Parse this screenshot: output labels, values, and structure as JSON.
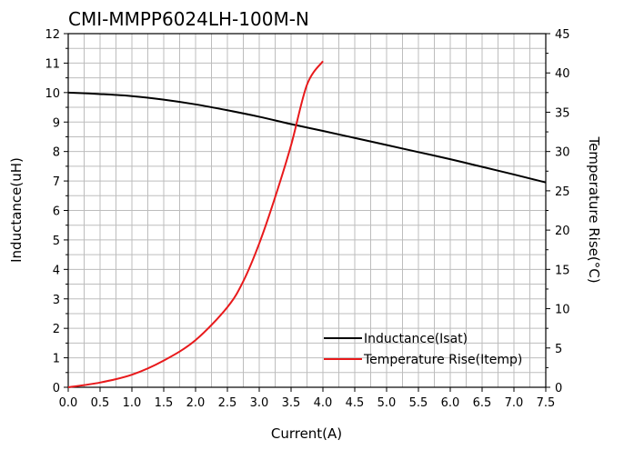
{
  "chart_data": {
    "type": "line",
    "title": "CMI-MMPP6024LH-100M-N",
    "xlabel": "Current(A)",
    "ylabel": "Inductance(uH)",
    "y2label": "Temperature Rise(°C)",
    "xlim": [
      0,
      7.5
    ],
    "ylim": [
      0,
      12
    ],
    "y2lim": [
      0,
      45
    ],
    "x_ticks": [
      "0.0",
      "0.5",
      "1.0",
      "1.5",
      "2.0",
      "2.5",
      "3.0",
      "3.5",
      "4.0",
      "4.5",
      "5.0",
      "5.5",
      "6.0",
      "6.5",
      "7.0",
      "7.5"
    ],
    "y_ticks": [
      "0",
      "1",
      "2",
      "3",
      "4",
      "5",
      "6",
      "7",
      "8",
      "9",
      "10",
      "11",
      "12"
    ],
    "y2_ticks": [
      "0",
      "5",
      "10",
      "15",
      "20",
      "25",
      "30",
      "35",
      "40",
      "45"
    ],
    "grid": true,
    "legend_position": "bottom-right",
    "series": [
      {
        "name": "Inductance(Isat)",
        "axis": "left",
        "color": "#000000",
        "x": [
          0,
          0.5,
          1.0,
          1.5,
          2.0,
          2.5,
          3.0,
          3.5,
          4.0,
          4.5,
          5.0,
          5.5,
          6.0,
          6.5,
          7.0,
          7.5
        ],
        "y": [
          10.0,
          9.95,
          9.88,
          9.76,
          9.6,
          9.4,
          9.18,
          8.93,
          8.7,
          8.46,
          8.22,
          7.98,
          7.74,
          7.48,
          7.22,
          6.95
        ]
      },
      {
        "name": "Temperature Rise(Itemp)",
        "axis": "right",
        "color": "#e8191b",
        "x": [
          0,
          0.5,
          1.0,
          1.5,
          2.0,
          2.5,
          2.75,
          3.0,
          3.25,
          3.5,
          3.75,
          4.0
        ],
        "y": [
          0,
          0.6,
          1.6,
          3.4,
          6.0,
          10.2,
          13.5,
          18.3,
          24.2,
          30.8,
          38.5,
          41.5
        ]
      }
    ]
  }
}
